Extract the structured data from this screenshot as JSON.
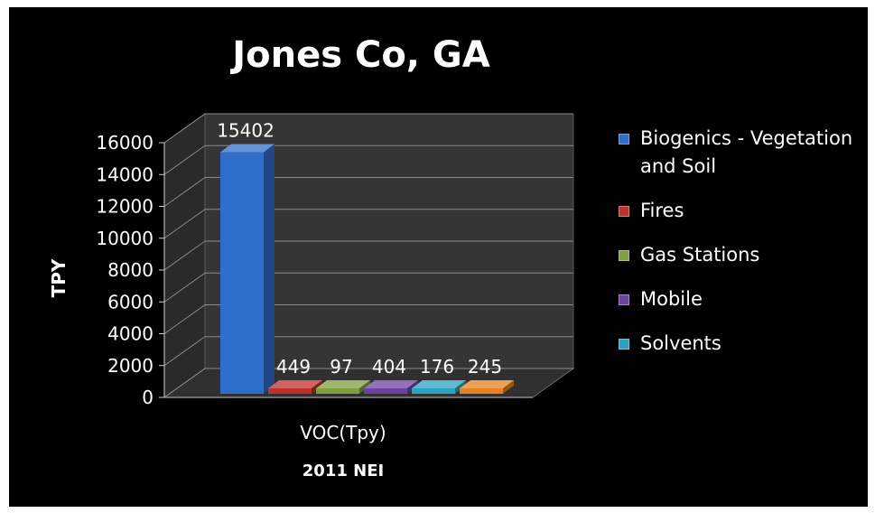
{
  "chart_data": {
    "type": "bar",
    "title": "Jones Co, GA",
    "ylabel": "TPY",
    "xlabel": "2011 NEI",
    "categories": [
      "VOC(Tpy)"
    ],
    "series": [
      {
        "name": "Biogenics - Vegetation and Soil",
        "values": [
          15402
        ],
        "color": "#2f6fcc"
      },
      {
        "name": "Fires",
        "values": [
          449
        ],
        "color": "#c0302b"
      },
      {
        "name": "Gas Stations",
        "values": [
          97
        ],
        "color": "#7ea03a"
      },
      {
        "name": "Mobile",
        "values": [
          404
        ],
        "color": "#6e42a3"
      },
      {
        "name": "Solvents",
        "values": [
          176
        ],
        "color": "#2aa3c2"
      },
      {
        "name": "",
        "values": [
          245
        ],
        "color": "#e8821e"
      }
    ],
    "yticks": [
      "0",
      "2000",
      "4000",
      "6000",
      "8000",
      "10000",
      "12000",
      "14000",
      "16000"
    ],
    "ylim": [
      0,
      16000
    ],
    "grid": true,
    "legend": "right",
    "background": "#000000"
  }
}
